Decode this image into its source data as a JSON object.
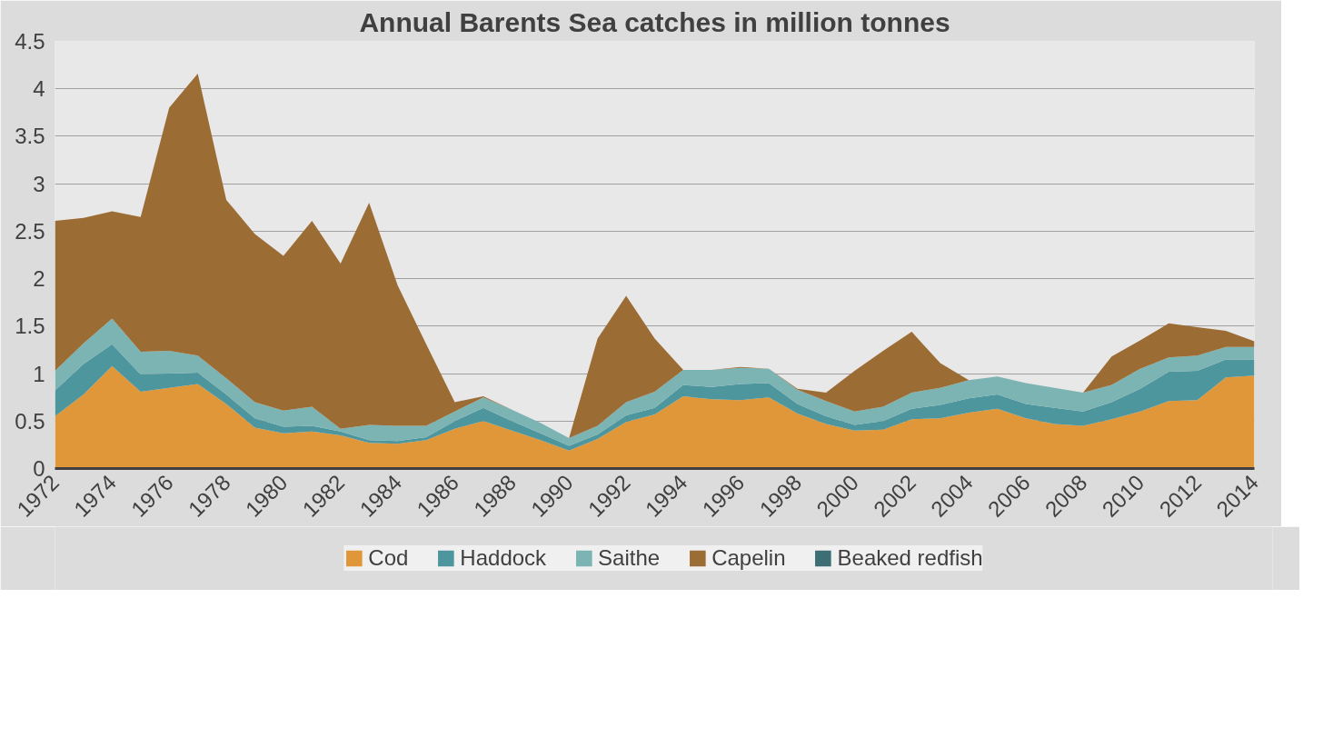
{
  "chart_data": {
    "type": "area",
    "stacked": true,
    "title": "Annual Barents Sea catches in million tonnes",
    "x": [
      1972,
      1973,
      1974,
      1975,
      1976,
      1977,
      1978,
      1979,
      1980,
      1981,
      1982,
      1983,
      1984,
      1985,
      1986,
      1987,
      1988,
      1989,
      1990,
      1991,
      1992,
      1993,
      1994,
      1995,
      1996,
      1997,
      1998,
      1999,
      2000,
      2001,
      2002,
      2003,
      2004,
      2005,
      2006,
      2007,
      2008,
      2009,
      2010,
      2011,
      2012,
      2013,
      2014
    ],
    "series": [
      {
        "name": "Cod",
        "color": "#e0973a",
        "values": [
          0.55,
          0.78,
          1.08,
          0.81,
          0.85,
          0.89,
          0.68,
          0.43,
          0.37,
          0.39,
          0.35,
          0.27,
          0.26,
          0.3,
          0.42,
          0.5,
          0.4,
          0.3,
          0.19,
          0.31,
          0.49,
          0.57,
          0.76,
          0.73,
          0.72,
          0.75,
          0.58,
          0.47,
          0.4,
          0.41,
          0.52,
          0.53,
          0.59,
          0.63,
          0.53,
          0.47,
          0.45,
          0.52,
          0.6,
          0.71,
          0.72,
          0.96,
          0.98
        ]
      },
      {
        "name": "Haddock",
        "color": "#4e969e",
        "values": [
          0.27,
          0.32,
          0.23,
          0.18,
          0.15,
          0.12,
          0.1,
          0.1,
          0.07,
          0.06,
          0.04,
          0.03,
          0.03,
          0.03,
          0.08,
          0.14,
          0.1,
          0.07,
          0.05,
          0.05,
          0.07,
          0.07,
          0.12,
          0.13,
          0.17,
          0.15,
          0.1,
          0.08,
          0.06,
          0.09,
          0.11,
          0.14,
          0.15,
          0.15,
          0.15,
          0.17,
          0.15,
          0.18,
          0.24,
          0.31,
          0.31,
          0.19,
          0.17
        ]
      },
      {
        "name": "Saithe",
        "color": "#7cb3b3",
        "values": [
          0.21,
          0.22,
          0.27,
          0.24,
          0.24,
          0.18,
          0.17,
          0.17,
          0.17,
          0.2,
          0.03,
          0.16,
          0.16,
          0.12,
          0.1,
          0.11,
          0.12,
          0.11,
          0.08,
          0.09,
          0.14,
          0.17,
          0.16,
          0.18,
          0.17,
          0.15,
          0.15,
          0.16,
          0.14,
          0.15,
          0.17,
          0.18,
          0.19,
          0.19,
          0.22,
          0.21,
          0.2,
          0.18,
          0.21,
          0.15,
          0.16,
          0.13,
          0.13
        ]
      },
      {
        "name": "Capelin",
        "color": "#9c6c35",
        "values": [
          1.58,
          1.32,
          1.13,
          1.42,
          2.56,
          2.97,
          1.88,
          1.77,
          1.63,
          1.96,
          1.74,
          2.34,
          1.48,
          0.86,
          0.1,
          0.01,
          0,
          0,
          0,
          0.92,
          1.12,
          0.56,
          0,
          0,
          0.01,
          0,
          0.01,
          0.09,
          0.43,
          0.59,
          0.64,
          0.26,
          0,
          0,
          0,
          0,
          0,
          0.3,
          0.3,
          0.36,
          0.3,
          0.17,
          0.06
        ]
      },
      {
        "name": "Beaked redfish",
        "color": "#3d6e73",
        "values": [
          null,
          null,
          null,
          null,
          null,
          null,
          null,
          null,
          null,
          null,
          null,
          null,
          null,
          null,
          null,
          null,
          null,
          null,
          null,
          null,
          null,
          null,
          null,
          null,
          null,
          null,
          null,
          null,
          null,
          null,
          null,
          null,
          null,
          null,
          null,
          null,
          null,
          null,
          null,
          null,
          null,
          null,
          null
        ]
      }
    ],
    "xlim": [
      1972,
      2014
    ],
    "xticks": [
      1972,
      1974,
      1976,
      1978,
      1980,
      1982,
      1984,
      1986,
      1988,
      1990,
      1992,
      1994,
      1996,
      1998,
      2000,
      2002,
      2004,
      2006,
      2008,
      2010,
      2012,
      2014
    ],
    "ylim": [
      0,
      4.5
    ],
    "yticks": [
      0,
      0.5,
      1,
      1.5,
      2,
      2.5,
      3,
      3.5,
      4,
      4.5
    ],
    "grid": "y",
    "legend": "bottom"
  }
}
